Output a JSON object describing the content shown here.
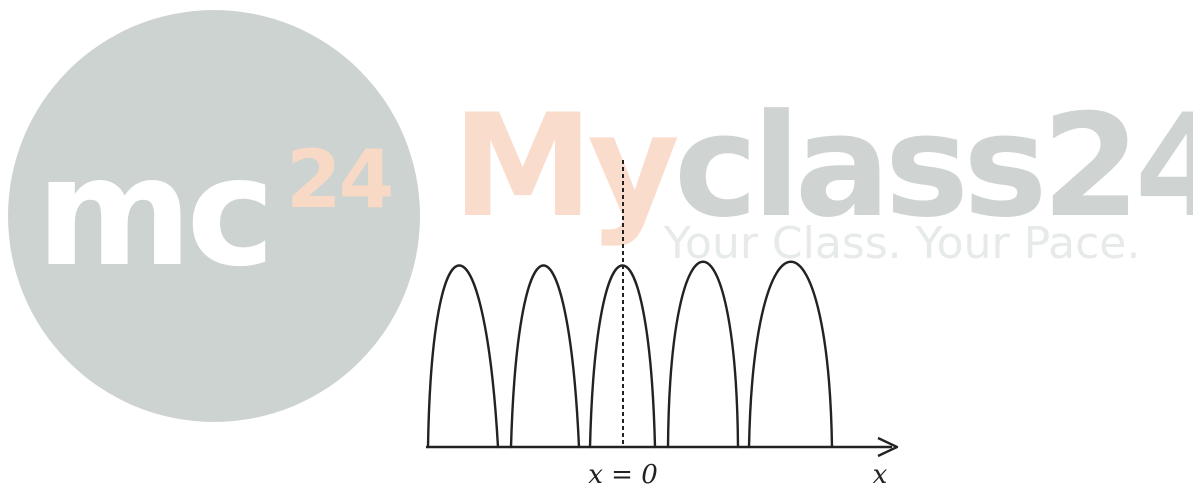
{
  "watermark": {
    "logo_main": "mc",
    "logo_sup": "24",
    "brand_part1": "My",
    "brand_part2": "class24",
    "tagline": "Your Class. Your Pace.",
    "colors": {
      "circle": "#cdd3d0",
      "accent": "#fadccc",
      "grey": "#cfd4d2"
    }
  },
  "diagram": {
    "center_label": "x = 0",
    "axis_label": "x",
    "fringe_count": 5,
    "stroke_color": "#222222"
  }
}
